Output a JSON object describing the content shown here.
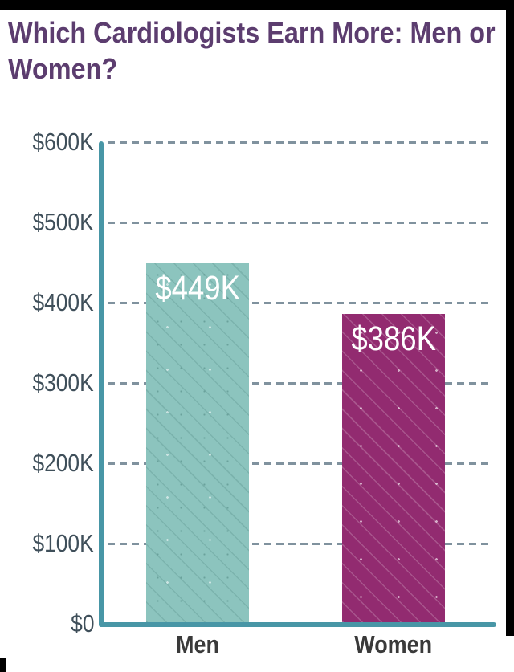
{
  "title_lines": [
    "Which Cardiologists Earn More: Men or",
    "Women?"
  ],
  "colors": {
    "page_bg": "#ffffff",
    "border": "#000000",
    "title": "#5c3d6f",
    "axis": "#4896a6",
    "gridline": "#80929e",
    "tick_label": "#3f4f5a",
    "category_label": "#3a3a3a",
    "value_label": "#ffffff",
    "men_bar": "#8cc4be",
    "women_bar": "#922b70"
  },
  "chart_data": {
    "type": "bar",
    "title": "Which Cardiologists Earn More: Men or Women?",
    "categories": [
      "Men",
      "Women"
    ],
    "values": [
      449,
      386
    ],
    "value_labels": [
      "$449K",
      "$386K"
    ],
    "yticks": [
      "$600K",
      "$500K",
      "$400K",
      "$300K",
      "$200K",
      "$100K",
      "$0"
    ],
    "ylim": [
      0,
      600
    ],
    "xlabel": "",
    "ylabel": "",
    "grid": "horizontal dashed gray lines at every $100K",
    "legend": "none",
    "bar_colors": [
      "#8cc4be",
      "#922b70"
    ],
    "bar_pattern": "diagonal dotted lines",
    "axis_color": "#4896a6"
  }
}
